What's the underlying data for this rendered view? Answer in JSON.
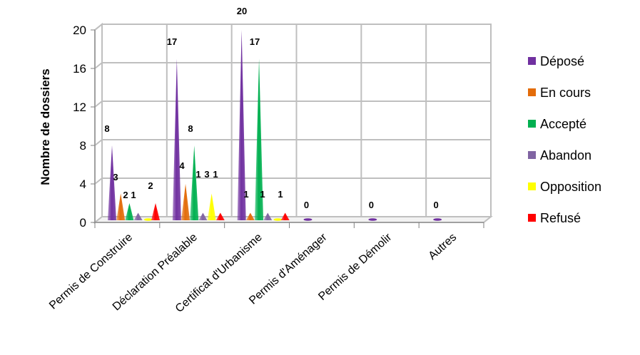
{
  "chart_data": {
    "type": "bar",
    "categories": [
      "Permis de Construire",
      "Déclaration Préalable",
      "Certificat d'Urbanisme",
      "Permis d'Aménager",
      "Permis de Démolir",
      "Autres"
    ],
    "series": [
      {
        "name": "Déposé",
        "color": "#7030a0",
        "values": [
          8,
          17,
          20,
          0,
          0,
          0
        ]
      },
      {
        "name": "En cours",
        "color": "#e36c0a",
        "values": [
          3,
          4,
          1,
          null,
          null,
          null
        ]
      },
      {
        "name": "Accepté",
        "color": "#00b050",
        "values": [
          2,
          8,
          17,
          null,
          null,
          null
        ]
      },
      {
        "name": "Abandon",
        "color": "#8064a2",
        "values": [
          1,
          1,
          1,
          null,
          null,
          null
        ]
      },
      {
        "name": "Opposition",
        "color": "#ffff00",
        "values": [
          0,
          3,
          0,
          null,
          null,
          null
        ]
      },
      {
        "name": "Refusé",
        "color": "#ff0000",
        "values": [
          2,
          1,
          1,
          null,
          null,
          null
        ]
      }
    ],
    "data_labels": [
      [
        "8",
        "3",
        "2",
        "1",
        null,
        "2"
      ],
      [
        "17",
        "4",
        "8",
        "1",
        "3",
        "1"
      ],
      [
        "20",
        "1",
        "17",
        "1",
        null,
        "1"
      ],
      [
        "0",
        null,
        null,
        null,
        null,
        null
      ],
      [
        "0",
        null,
        null,
        null,
        null,
        null
      ],
      [
        "0",
        null,
        null,
        null,
        null,
        null
      ]
    ],
    "title": "",
    "xlabel": "",
    "ylabel": "Nombre de dossiers",
    "ylim": [
      0,
      20
    ],
    "yticks": [
      "0",
      "4",
      "8",
      "12",
      "16",
      "20"
    ],
    "grid": true,
    "legend_position": "right"
  }
}
